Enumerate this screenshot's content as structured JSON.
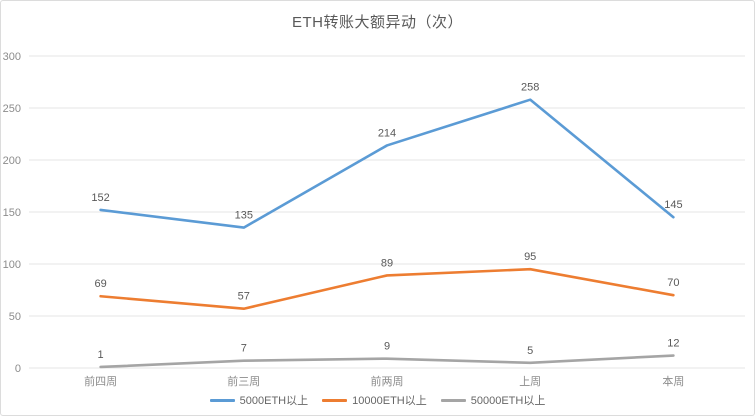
{
  "title": "ETH转账大额异动（次）",
  "chart_data": {
    "type": "line",
    "title": "ETH转账大额异动（次）",
    "categories": [
      "前四周",
      "前三周",
      "前两周",
      "上周",
      "本周"
    ],
    "series": [
      {
        "name": "5000ETH以上",
        "values": [
          152,
          135,
          214,
          258,
          145
        ],
        "color": "#5B9BD5"
      },
      {
        "name": "10000ETH以上",
        "values": [
          69,
          57,
          89,
          95,
          70
        ],
        "color": "#ED7D31"
      },
      {
        "name": "50000ETH以上",
        "values": [
          1,
          7,
          9,
          5,
          12
        ],
        "color": "#A5A5A5"
      }
    ],
    "xlabel": "",
    "ylabel": "",
    "ylim": [
      0,
      300
    ],
    "yticks": [
      0,
      50,
      100,
      150,
      200,
      250,
      300
    ],
    "grid": true,
    "legend_position": "bottom",
    "data_labels": true
  },
  "styles": {
    "background": "#FFFFFF",
    "border_color": "#DCDCDC",
    "grid_color": "#E4E4E4",
    "axis_text_color": "#8C8C8C",
    "label_text_color": "#595959",
    "title_color": "#595959"
  }
}
